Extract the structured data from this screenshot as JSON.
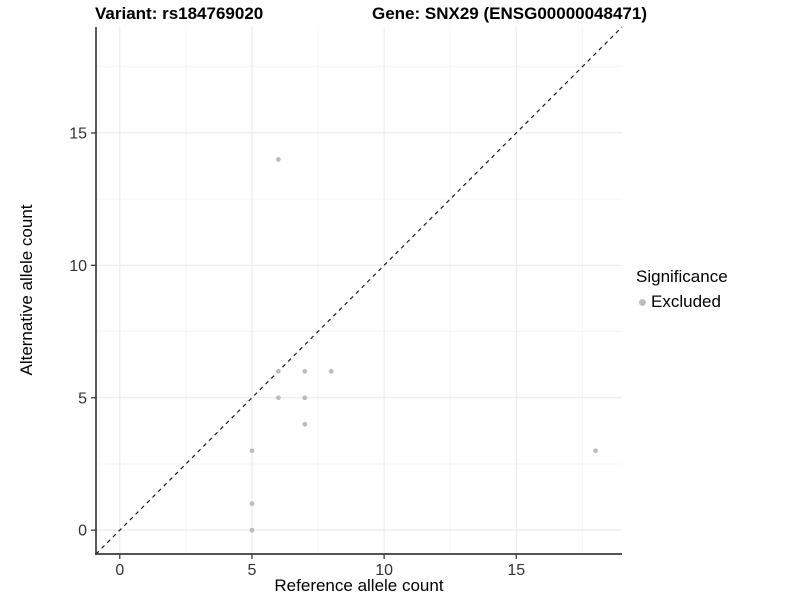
{
  "header": {
    "variant_title": "Variant: rs184769020",
    "gene_title": "Gene: SNX29 (ENSG00000048471)"
  },
  "chart_data": {
    "type": "scatter",
    "title_left": "Variant: rs184769020",
    "title_right": "Gene: SNX29 (ENSG00000048471)",
    "xlabel": "Reference allele count",
    "ylabel": "Alternative allele count",
    "axes": {
      "xlim": [
        -0.9,
        19.0
      ],
      "ylim": [
        -0.9,
        19.0
      ],
      "xticks": [
        0,
        5,
        10,
        15
      ],
      "yticks": [
        0,
        5,
        10,
        15
      ],
      "minor_xticks": [
        2.5,
        7.5,
        12.5,
        17.5
      ],
      "minor_yticks": [
        2.5,
        7.5,
        12.5,
        17.5
      ],
      "grid": true
    },
    "series": [
      {
        "name": "Excluded",
        "color": "#bdbdbd",
        "points": [
          [
            5,
            0
          ],
          [
            5,
            1
          ],
          [
            5,
            3
          ],
          [
            6,
            5
          ],
          [
            6,
            6
          ],
          [
            6,
            14
          ],
          [
            7,
            4
          ],
          [
            7,
            5
          ],
          [
            7,
            6
          ],
          [
            8,
            6
          ],
          [
            18,
            3
          ]
        ]
      }
    ],
    "identity_line": {
      "style": "dashed",
      "color": "#1a1a1a",
      "equation": "y = x"
    },
    "legend": {
      "title": "Significance",
      "position": "right",
      "items": [
        {
          "label": "Excluded",
          "color": "#bdbdbd"
        }
      ]
    },
    "colors": {
      "axis_line": "#3c3c3c",
      "grid_major": "#e8e8e8",
      "grid_minor": "#f4f4f4",
      "tick_text": "#333333",
      "point": "#bdbdbd"
    }
  }
}
